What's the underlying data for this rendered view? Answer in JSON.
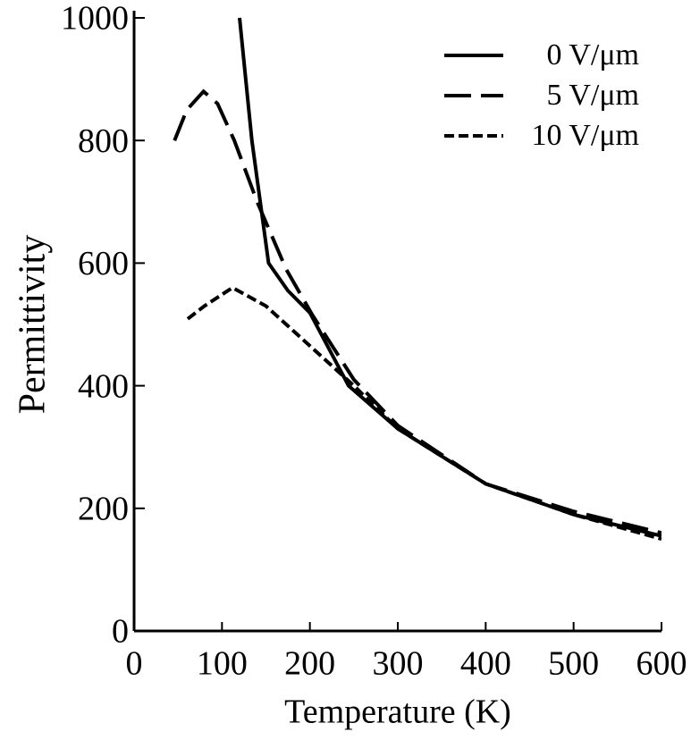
{
  "chart_data": {
    "type": "line",
    "xlabel": "Temperature (K)",
    "ylabel": "Permittivity",
    "xlim": [
      0,
      600
    ],
    "xticks": [
      0,
      100,
      200,
      300,
      400,
      500,
      600
    ],
    "ylim": [
      0,
      1000
    ],
    "yticks": [
      0,
      200,
      400,
      600,
      800,
      1000
    ],
    "legend": "upper right",
    "series": [
      {
        "name": "0 V/μm",
        "color": "#000000",
        "linestyle": "solid",
        "x": [
          120,
          134,
          153,
          175,
          200,
          244,
          300,
          400,
          500,
          600
        ],
        "values": [
          1000,
          800,
          600,
          555,
          519,
          400,
          330,
          240,
          190,
          155
        ]
      },
      {
        "name": "5 V/μm",
        "color": "#000000",
        "linestyle": "dashed",
        "x": [
          46,
          60,
          79,
          95,
          114,
          140,
          173,
          203,
          250,
          300,
          400,
          500,
          600
        ],
        "values": [
          800,
          850,
          880,
          860,
          800,
          700,
          590,
          515,
          410,
          335,
          240,
          195,
          160
        ]
      },
      {
        "name": "10 V/μm",
        "color": "#000000",
        "linestyle": "dotted",
        "x": [
          61,
          80,
          112,
          150,
          200,
          250,
          300,
          400,
          500,
          600
        ],
        "values": [
          509,
          530,
          560,
          530,
          465,
          400,
          330,
          240,
          190,
          150
        ]
      }
    ]
  }
}
